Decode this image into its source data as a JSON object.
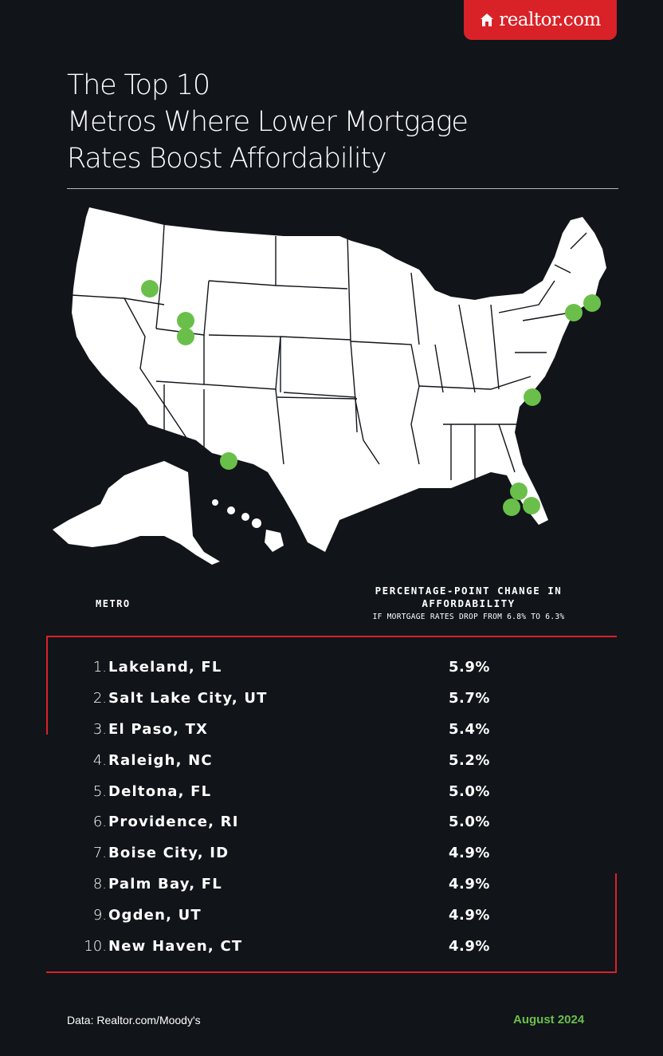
{
  "brand": {
    "logo_text": "realtor.com",
    "accent": "#d92228",
    "highlight": "#6abf4b",
    "background": "#111419"
  },
  "header": {
    "title_line1": "The Top 10",
    "title_line2": "Metros Where Lower Mortgage",
    "title_line3": "Rates Boost Affordability"
  },
  "map": {
    "marker_color": "#6abf4b",
    "markers": [
      "Lakeland, FL",
      "Salt Lake City, UT",
      "El Paso, TX",
      "Raleigh, NC",
      "Deltona, FL",
      "Providence, RI",
      "Boise City, ID",
      "Palm Bay, FL",
      "Ogden, UT",
      "New Haven, CT"
    ]
  },
  "table": {
    "col_metro": "METRO",
    "col_change": "PERCENTAGE-POINT CHANGE IN AFFORDABILITY",
    "col_change_sub": "IF MORTGAGE RATES DROP FROM 6.8% TO 6.3%",
    "rows": [
      {
        "rank": "1.",
        "metro": "Lakeland, FL",
        "value": "5.9%"
      },
      {
        "rank": "2.",
        "metro": "Salt Lake City, UT",
        "value": "5.7%"
      },
      {
        "rank": "3.",
        "metro": "El Paso, TX",
        "value": "5.4%"
      },
      {
        "rank": "4.",
        "metro": "Raleigh, NC",
        "value": "5.2%"
      },
      {
        "rank": "5.",
        "metro": "Deltona, FL",
        "value": "5.0%"
      },
      {
        "rank": "6.",
        "metro": "Providence, RI",
        "value": "5.0%"
      },
      {
        "rank": "7.",
        "metro": "Boise City, ID",
        "value": "4.9%"
      },
      {
        "rank": "8.",
        "metro": "Palm Bay, FL",
        "value": "4.9%"
      },
      {
        "rank": "9.",
        "metro": "Ogden, UT",
        "value": "4.9%"
      },
      {
        "rank": "10.",
        "metro": "New Haven, CT",
        "value": "4.9%"
      }
    ]
  },
  "footer": {
    "source": "Data: Realtor.com/Moody's",
    "date": "August 2024"
  },
  "chart_data": {
    "type": "table",
    "title": "The Top 10 Metros Where Lower Mortgage Rates Boost Affordability",
    "columns": [
      "METRO",
      "PERCENTAGE-POINT CHANGE IN AFFORDABILITY"
    ],
    "categories": [
      "Lakeland, FL",
      "Salt Lake City, UT",
      "El Paso, TX",
      "Raleigh, NC",
      "Deltona, FL",
      "Providence, RI",
      "Boise City, ID",
      "Palm Bay, FL",
      "Ogden, UT",
      "New Haven, CT"
    ],
    "values": [
      5.9,
      5.7,
      5.4,
      5.2,
      5.0,
      5.0,
      4.9,
      4.9,
      4.9,
      4.9
    ],
    "unit": "%"
  }
}
